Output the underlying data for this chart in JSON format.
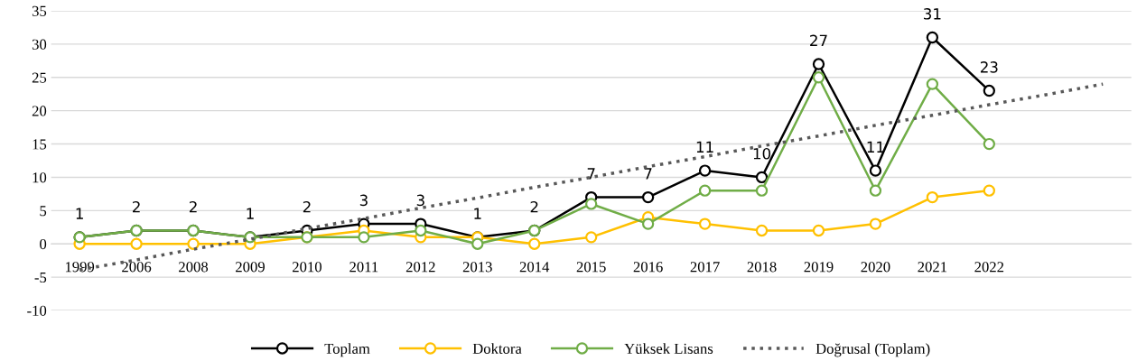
{
  "chart_data": {
    "type": "line",
    "categories": [
      "1999",
      "2006",
      "2008",
      "2009",
      "2010",
      "2011",
      "2012",
      "2013",
      "2014",
      "2015",
      "2016",
      "2017",
      "2018",
      "2019",
      "2020",
      "2021",
      "2022",
      null,
      null
    ],
    "series": [
      {
        "name": "Toplam",
        "color": "#000000",
        "values": [
          1,
          2,
          2,
          1,
          2,
          3,
          3,
          1,
          2,
          7,
          7,
          11,
          10,
          27,
          11,
          31,
          23,
          null,
          null
        ],
        "value_labels": [
          "1",
          "2",
          "2",
          "1",
          "2",
          "3",
          "3",
          "1",
          "2",
          "7",
          "7",
          "11",
          "10",
          "27",
          "11",
          "31",
          "23",
          null,
          null
        ]
      },
      {
        "name": "Doktora",
        "color": "#ffc000",
        "values": [
          0,
          0,
          0,
          0,
          1,
          2,
          1,
          1,
          0,
          1,
          4,
          3,
          2,
          2,
          3,
          7,
          8,
          null,
          null
        ]
      },
      {
        "name": "Yüksek Lisans",
        "color": "#70ad47",
        "values": [
          1,
          2,
          2,
          1,
          1,
          1,
          2,
          0,
          2,
          6,
          3,
          8,
          8,
          25,
          8,
          24,
          15,
          null,
          null
        ]
      },
      {
        "name": "Doğrusal (Toplam)",
        "color": "#595959",
        "marker": "none",
        "line_style": "dotted",
        "values": [
          -3.9,
          -2.4,
          -0.8,
          0.7,
          2.3,
          3.8,
          5.4,
          6.9,
          8.5,
          10.0,
          11.6,
          13.1,
          14.7,
          16.2,
          17.8,
          19.3,
          20.9,
          22.4,
          24.0
        ]
      }
    ],
    "ylim": [
      -10,
      35
    ],
    "yticks": [
      -10,
      -5,
      0,
      5,
      10,
      15,
      20,
      25,
      30,
      35
    ],
    "grid": "y",
    "legend": "bottom",
    "marker": "circle",
    "line_style": "solid"
  }
}
